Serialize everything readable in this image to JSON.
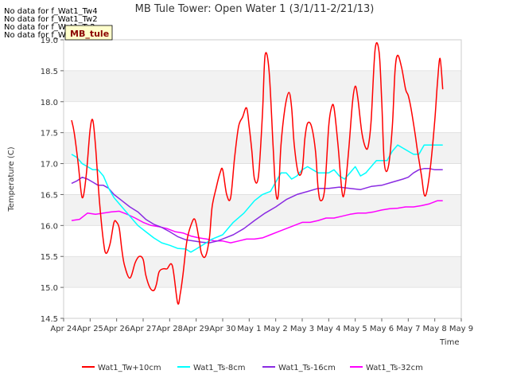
{
  "chart_data": {
    "type": "line",
    "title": "MB Tule Tower: Open Water 1 (3/1/11-2/21/13)",
    "xlabel": "Time",
    "ylabel": "Temperature (C)",
    "ylim": [
      14.5,
      19.0
    ],
    "xlim": [
      0,
      15
    ],
    "x_tick_labels": [
      "Apr 24",
      "Apr 25",
      "Apr 26",
      "Apr 27",
      "Apr 28",
      "Apr 29",
      "Apr 30",
      "May 1",
      "May 2",
      "May 3",
      "May 4",
      "May 5",
      "May 6",
      "May 7",
      "May 8",
      "May 9"
    ],
    "y_ticks": [
      14.5,
      15.0,
      15.5,
      16.0,
      16.5,
      17.0,
      17.5,
      18.0,
      18.5,
      19.0
    ],
    "y_tick_labels": [
      "14.5",
      "15.0",
      "15.5",
      "16.0",
      "16.5",
      "17.0",
      "17.5",
      "18.0",
      "18.5",
      "19.0"
    ],
    "no_data_messages": [
      "No data for f_Wat1_Tw4",
      "No data for f_Wat1_Tw2",
      "No data for f_Wat1_Ts2",
      "No data for f_Wat1_Tw6"
    ],
    "annotation": "MB_tule",
    "series": [
      {
        "name": "Wat1_Tw+10cm",
        "color": "#ff0000",
        "x": [
          0.3,
          0.4,
          0.55,
          0.7,
          0.85,
          1.0,
          1.1,
          1.2,
          1.35,
          1.5,
          1.6,
          1.75,
          1.9,
          2.0,
          2.1,
          2.2,
          2.3,
          2.5,
          2.7,
          2.85,
          3.0,
          3.1,
          3.25,
          3.4,
          3.5,
          3.6,
          3.75,
          3.9,
          4.1,
          4.3,
          4.4,
          4.5,
          4.65,
          4.8,
          4.95,
          5.1,
          5.2,
          5.35,
          5.5,
          5.6,
          5.75,
          5.9,
          6.0,
          6.15,
          6.3,
          6.45,
          6.6,
          6.75,
          6.9,
          7.0,
          7.1,
          7.2,
          7.35,
          7.5,
          7.6,
          7.75,
          7.9,
          8.0,
          8.1,
          8.2,
          8.35,
          8.5,
          8.6,
          8.7,
          8.85,
          9.0,
          9.1,
          9.2,
          9.35,
          9.5,
          9.6,
          9.7,
          9.85,
          10.0,
          10.1,
          10.2,
          10.35,
          10.5,
          10.6,
          10.75,
          10.9,
          11.0,
          11.1,
          11.25,
          11.4,
          11.5,
          11.6,
          11.75,
          11.9,
          12.0,
          12.1,
          12.25,
          12.4,
          12.5,
          12.6,
          12.75,
          12.9,
          13.0,
          13.1,
          13.25,
          13.35,
          13.5,
          13.6,
          13.7,
          13.85,
          14.0,
          14.1,
          14.2,
          14.3
        ],
        "values": [
          17.7,
          17.5,
          17.0,
          16.45,
          16.8,
          17.55,
          17.7,
          17.3,
          16.4,
          15.75,
          15.55,
          15.7,
          16.05,
          16.05,
          15.95,
          15.6,
          15.35,
          15.15,
          15.4,
          15.5,
          15.45,
          15.2,
          15.0,
          14.95,
          15.05,
          15.25,
          15.3,
          15.3,
          15.35,
          14.75,
          14.9,
          15.2,
          15.75,
          16.0,
          16.1,
          15.8,
          15.55,
          15.5,
          15.8,
          16.3,
          16.6,
          16.85,
          16.9,
          16.5,
          16.45,
          17.1,
          17.6,
          17.75,
          17.9,
          17.6,
          17.2,
          16.75,
          16.8,
          17.8,
          18.75,
          18.5,
          17.3,
          16.55,
          16.5,
          17.3,
          17.9,
          18.15,
          17.9,
          17.3,
          16.85,
          16.9,
          17.4,
          17.65,
          17.6,
          17.2,
          16.6,
          16.4,
          16.6,
          17.6,
          17.9,
          17.9,
          17.3,
          16.55,
          16.55,
          17.2,
          18.0,
          18.25,
          18.05,
          17.5,
          17.25,
          17.3,
          17.7,
          18.85,
          18.8,
          18.0,
          17.0,
          16.95,
          17.6,
          18.5,
          18.75,
          18.55,
          18.2,
          18.1,
          17.9,
          17.5,
          17.2,
          16.8,
          16.5,
          16.55,
          17.0,
          17.7,
          18.3,
          18.7,
          18.2
        ],
        "smooth": true
      },
      {
        "name": "Wat1_Ts-8cm",
        "color": "#00ffff",
        "x": [
          0.3,
          0.5,
          0.7,
          0.9,
          1.1,
          1.3,
          1.5,
          1.7,
          1.9,
          2.2,
          2.5,
          2.8,
          3.1,
          3.4,
          3.7,
          4.0,
          4.3,
          4.6,
          4.8,
          5.0,
          5.3,
          5.6,
          6.0,
          6.4,
          6.8,
          7.2,
          7.5,
          7.8,
          8.0,
          8.2,
          8.4,
          8.6,
          8.8,
          9.0,
          9.2,
          9.4,
          9.6,
          9.8,
          10.0,
          10.2,
          10.4,
          10.6,
          10.8,
          11.0,
          11.2,
          11.4,
          11.6,
          11.8,
          12.0,
          12.2,
          12.4,
          12.6,
          12.8,
          13.0,
          13.2,
          13.4,
          13.6,
          13.8,
          14.0,
          14.2,
          14.3
        ],
        "values": [
          17.15,
          17.1,
          17.0,
          16.95,
          16.9,
          16.9,
          16.8,
          16.6,
          16.45,
          16.3,
          16.15,
          16.0,
          15.9,
          15.8,
          15.72,
          15.68,
          15.63,
          15.62,
          15.57,
          15.62,
          15.7,
          15.78,
          15.85,
          16.05,
          16.2,
          16.4,
          16.5,
          16.55,
          16.7,
          16.85,
          16.85,
          16.75,
          16.8,
          16.9,
          16.95,
          16.9,
          16.85,
          16.85,
          16.85,
          16.9,
          16.8,
          16.75,
          16.85,
          16.95,
          16.8,
          16.85,
          16.95,
          17.05,
          17.05,
          17.05,
          17.2,
          17.3,
          17.25,
          17.2,
          17.15,
          17.15,
          17.3,
          17.3,
          17.3,
          17.3,
          17.3
        ],
        "smooth": false
      },
      {
        "name": "Wat1_Ts-16cm",
        "color": "#8a2be2",
        "x": [
          0.3,
          0.5,
          0.7,
          0.9,
          1.1,
          1.3,
          1.5,
          1.7,
          1.9,
          2.2,
          2.5,
          2.8,
          3.1,
          3.4,
          3.7,
          4.0,
          4.3,
          4.6,
          4.9,
          5.2,
          5.5,
          5.8,
          6.1,
          6.4,
          6.8,
          7.2,
          7.6,
          8.0,
          8.4,
          8.8,
          9.2,
          9.6,
          10.0,
          10.4,
          10.8,
          11.2,
          11.6,
          12.0,
          12.4,
          12.8,
          13.0,
          13.2,
          13.4,
          13.6,
          13.8,
          14.0,
          14.2,
          14.3
        ],
        "values": [
          16.68,
          16.72,
          16.78,
          16.75,
          16.7,
          16.65,
          16.65,
          16.6,
          16.5,
          16.4,
          16.3,
          16.22,
          16.1,
          16.02,
          15.97,
          15.9,
          15.82,
          15.77,
          15.75,
          15.73,
          15.72,
          15.75,
          15.8,
          15.85,
          15.95,
          16.08,
          16.2,
          16.3,
          16.42,
          16.5,
          16.55,
          16.6,
          16.6,
          16.62,
          16.6,
          16.58,
          16.63,
          16.65,
          16.7,
          16.75,
          16.78,
          16.85,
          16.9,
          16.92,
          16.92,
          16.9,
          16.9,
          16.9
        ],
        "smooth": false
      },
      {
        "name": "Wat1_Ts-32cm",
        "color": "#ff00ff",
        "x": [
          0.3,
          0.6,
          0.9,
          1.2,
          1.5,
          1.8,
          2.1,
          2.4,
          2.7,
          3.0,
          3.3,
          3.6,
          3.9,
          4.2,
          4.5,
          4.8,
          5.1,
          5.4,
          5.7,
          6.0,
          6.3,
          6.6,
          6.9,
          7.2,
          7.5,
          7.8,
          8.1,
          8.4,
          8.7,
          9.0,
          9.3,
          9.6,
          9.9,
          10.2,
          10.5,
          10.8,
          11.1,
          11.4,
          11.7,
          12.0,
          12.3,
          12.6,
          12.9,
          13.2,
          13.5,
          13.8,
          14.1,
          14.3
        ],
        "values": [
          16.08,
          16.1,
          16.2,
          16.18,
          16.2,
          16.22,
          16.23,
          16.18,
          16.12,
          16.05,
          16.0,
          15.98,
          15.95,
          15.9,
          15.88,
          15.83,
          15.8,
          15.78,
          15.75,
          15.75,
          15.72,
          15.75,
          15.78,
          15.78,
          15.8,
          15.85,
          15.9,
          15.95,
          16.0,
          16.05,
          16.05,
          16.08,
          16.12,
          16.12,
          16.15,
          16.18,
          16.2,
          16.2,
          16.22,
          16.25,
          16.27,
          16.28,
          16.3,
          16.3,
          16.32,
          16.35,
          16.4,
          16.4
        ],
        "smooth": false
      }
    ]
  }
}
